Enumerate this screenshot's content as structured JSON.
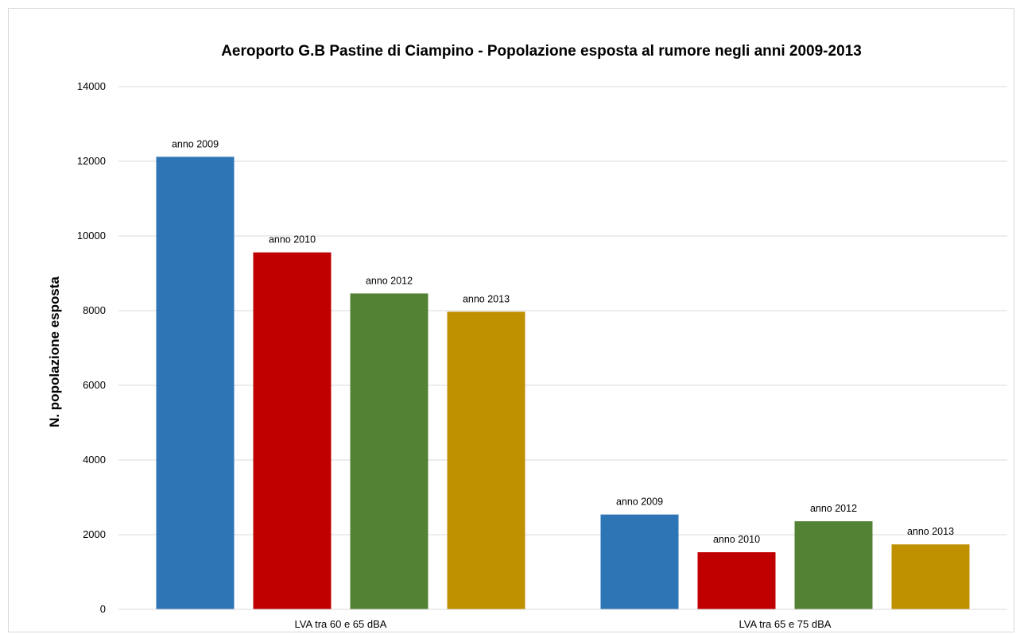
{
  "chart_data": {
    "type": "bar",
    "title": "Aeroporto G.B Pastine di Ciampino - Popolazione esposta al rumore negli anni 2009-2013",
    "xlabel": "",
    "ylabel": "N. popolazione esposta",
    "ylim": [
      0,
      14000
    ],
    "yticks": [
      "0",
      "2000",
      "4000",
      "6000",
      "8000",
      "10000",
      "12000",
      "14000"
    ],
    "grid": true,
    "legend": "none",
    "categories": [
      "LVA tra 60 e 65 dBA",
      "LVA tra 65 e 75 dBA"
    ],
    "series": [
      {
        "name": "anno 2009",
        "color": "#2e75b6",
        "values": [
          12120,
          2540
        ]
      },
      {
        "name": "anno 2010",
        "color": "#c00000",
        "values": [
          9560,
          1530
        ]
      },
      {
        "name": "anno 2012",
        "color": "#548235",
        "values": [
          8460,
          2360
        ]
      },
      {
        "name": "anno 2013",
        "color": "#bf9000",
        "values": [
          7970,
          1740
        ]
      }
    ]
  }
}
